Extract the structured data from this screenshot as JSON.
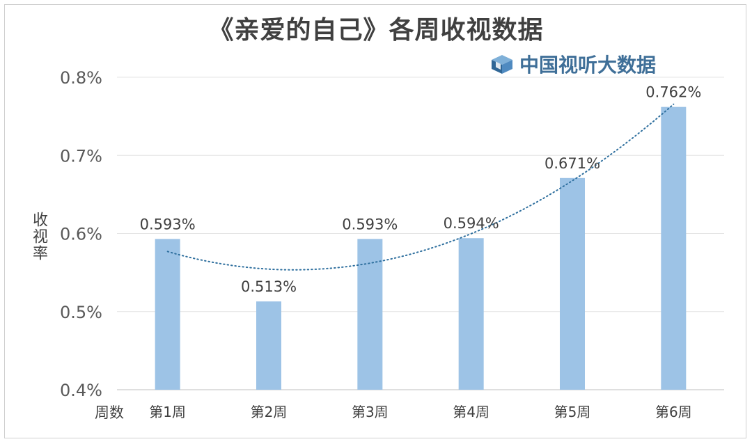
{
  "chart_data": {
    "type": "bar",
    "title": "《亲爱的自己》各周收视数据",
    "ylabel": "收视率",
    "xlabel": "周数",
    "categories": [
      "第1周",
      "第2周",
      "第3周",
      "第4周",
      "第5周",
      "第6周"
    ],
    "values": [
      0.593,
      0.513,
      0.593,
      0.594,
      0.671,
      0.762
    ],
    "value_labels": [
      "0.593%",
      "0.513%",
      "0.593%",
      "0.594%",
      "0.671%",
      "0.762%"
    ],
    "ylim": [
      0.4,
      0.8
    ],
    "yticks": [
      0.4,
      0.5,
      0.6,
      0.7,
      0.8
    ],
    "ytick_labels": [
      "0.4%",
      "0.5%",
      "0.6%",
      "0.7%",
      "0.8%"
    ],
    "grid": true,
    "trendline": "polynomial, dotted",
    "bar_color": "#9dc3e6",
    "trend_color": "#2e6f9e",
    "grid_color": "#e4e4e4"
  },
  "brand": {
    "text": "中国视听大数据",
    "icon": "cube-logo-icon",
    "color": "#3f6f98"
  }
}
